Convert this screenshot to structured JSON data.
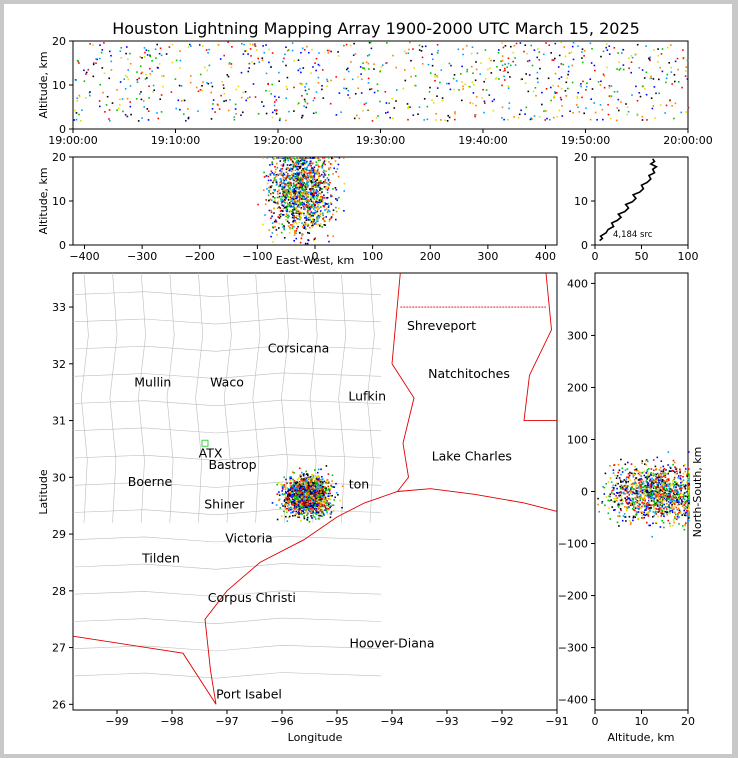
{
  "title": "Houston Lightning Mapping Array 1900-2000 UTC March 15, 2025",
  "colors": {
    "frame_bg": "#ffffff",
    "page_bg": "#c8c8c8",
    "state_border": "#e00000",
    "county_border": "#bdbdbd",
    "source_palette": [
      "#0000ff",
      "#00a0ff",
      "#00c000",
      "#e0e000",
      "#ff8000",
      "#ff0000",
      "#000000"
    ],
    "station_orange": "#f08030",
    "station_blue": "#2020d0",
    "station_green": "#40d040"
  },
  "chart_data": [
    {
      "id": "time-altitude",
      "type": "scatter",
      "xlabel": "",
      "ylabel": "Altitude, km",
      "xlim": [
        "19:00:00",
        "20:00:00"
      ],
      "ylim": [
        0,
        20
      ],
      "x_ticks": [
        "19:00:00",
        "19:10:00",
        "19:20:00",
        "19:30:00",
        "19:40:00",
        "19:50:00",
        "20:00:00"
      ],
      "y_ticks": [
        "0",
        "10",
        "20"
      ],
      "note": "sources spread across full hour, altitudes ~2-20 km"
    },
    {
      "id": "ew-altitude",
      "type": "scatter",
      "xlabel": "East-West, km",
      "ylabel": "Altitude, km",
      "xlim": [
        -420,
        420
      ],
      "ylim": [
        0,
        20
      ],
      "x_ticks": [
        "−400",
        "−300",
        "−200",
        "−100",
        "0",
        "100",
        "200",
        "300",
        "400"
      ],
      "y_ticks": [
        "0",
        "10",
        "20"
      ],
      "cluster": {
        "x_center": -25,
        "x_spread": 45,
        "alt_center": 13,
        "alt_spread": 5
      }
    },
    {
      "id": "altitude-histogram",
      "type": "line",
      "xlim": [
        0,
        100
      ],
      "ylim": [
        0,
        20
      ],
      "x_ticks": [
        "0",
        "50",
        "100"
      ],
      "y_ticks": [
        "0",
        "10",
        "20"
      ],
      "annotation": "4,184 src",
      "curve": [
        [
          5,
          1
        ],
        [
          8,
          1.5
        ],
        [
          6,
          2
        ],
        [
          12,
          2.8
        ],
        [
          14,
          3.5
        ],
        [
          20,
          4.2
        ],
        [
          18,
          5
        ],
        [
          24,
          5.6
        ],
        [
          28,
          6.3
        ],
        [
          25,
          7
        ],
        [
          32,
          7.6
        ],
        [
          36,
          8.4
        ],
        [
          33,
          9.2
        ],
        [
          40,
          9.8
        ],
        [
          44,
          10.6
        ],
        [
          41,
          11.4
        ],
        [
          48,
          12
        ],
        [
          52,
          12.8
        ],
        [
          50,
          13.6
        ],
        [
          56,
          14.2
        ],
        [
          60,
          15
        ],
        [
          58,
          15.8
        ],
        [
          64,
          16.4
        ],
        [
          62,
          17.2
        ],
        [
          66,
          17.8
        ],
        [
          60,
          18.4
        ],
        [
          64,
          19
        ],
        [
          62,
          19.6
        ]
      ]
    },
    {
      "id": "plan-view",
      "type": "scatter",
      "xlabel": "Longitude",
      "ylabel": "Latitude",
      "xlim": [
        -99.8,
        -91
      ],
      "ylim": [
        25.9,
        33.6
      ],
      "x_ticks": [
        "−99",
        "−98",
        "−97",
        "−96",
        "−95",
        "−94",
        "−93",
        "−92",
        "−91"
      ],
      "y_ticks": [
        "26",
        "27",
        "28",
        "29",
        "30",
        "31",
        "32",
        "33"
      ],
      "cluster": {
        "lon_center": -95.55,
        "lat_center": 29.7,
        "lon_spread": 0.35,
        "lat_spread": 0.3
      },
      "cities": [
        {
          "name": "Shreveport",
          "lon": -93.1,
          "lat": 32.6,
          "color": "#000000"
        },
        {
          "name": "Corsicana",
          "lon": -95.7,
          "lat": 32.2,
          "color": "#000000"
        },
        {
          "name": "Natchitoches",
          "lon": -92.6,
          "lat": 31.75,
          "color": "#000000"
        },
        {
          "name": "Mullin",
          "lon": -98.35,
          "lat": 31.6,
          "color": "#f08030"
        },
        {
          "name": "Waco",
          "lon": -97.0,
          "lat": 31.6,
          "color": "#000000"
        },
        {
          "name": "Lufkin",
          "lon": -94.45,
          "lat": 31.35,
          "color": "#000000"
        },
        {
          "name": "ATX",
          "lon": -97.3,
          "lat": 30.35,
          "color": "#f08030"
        },
        {
          "name": "Bastrop",
          "lon": -96.9,
          "lat": 30.15,
          "color": "#000000"
        },
        {
          "name": "Lake Charles",
          "lon": -92.55,
          "lat": 30.3,
          "color": "#000000"
        },
        {
          "name": "Boerne",
          "lon": -98.4,
          "lat": 29.85,
          "color": "#000000"
        },
        {
          "name": "ton",
          "lon": -94.6,
          "lat": 29.8,
          "color": "#f0a020"
        },
        {
          "name": "Shiner",
          "lon": -97.05,
          "lat": 29.45,
          "color": "#000000"
        },
        {
          "name": "Victoria",
          "lon": -96.6,
          "lat": 28.85,
          "color": "#000000"
        },
        {
          "name": "Tilden",
          "lon": -98.2,
          "lat": 28.5,
          "color": "#000000"
        },
        {
          "name": "Corpus Christi",
          "lon": -96.55,
          "lat": 27.8,
          "color": "#000000"
        },
        {
          "name": "Hoover-Diana",
          "lon": -94.0,
          "lat": 27.0,
          "color": "#2020d0"
        },
        {
          "name": "Port Isabel",
          "lon": -96.6,
          "lat": 26.1,
          "color": "#000000"
        }
      ],
      "station_marker": {
        "lon": -97.4,
        "lat": 30.6,
        "color": "#40d040"
      }
    },
    {
      "id": "altitude-ns",
      "type": "scatter",
      "xlabel": "Altitude, km",
      "ylabel": "North-South, km",
      "xlim": [
        0,
        20
      ],
      "ylim": [
        -420,
        420
      ],
      "x_ticks": [
        "0",
        "10",
        "20"
      ],
      "y_ticks": [
        "−400",
        "−300",
        "−200",
        "−100",
        "0",
        "100",
        "200",
        "300",
        "400"
      ],
      "cluster": {
        "ns_center": 0,
        "ns_spread": 45,
        "alt_center": 13,
        "alt_spread": 5
      }
    }
  ]
}
